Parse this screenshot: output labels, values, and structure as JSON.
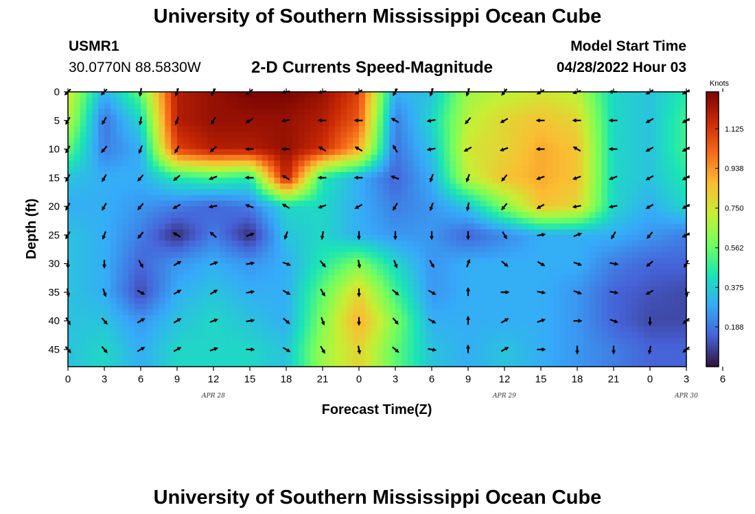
{
  "header": {
    "title": "University of Southern Mississippi Ocean Cube",
    "station_id": "USMR1",
    "coords": "30.0770N  88.5830W",
    "subtitle": "2-D Currents Speed-Magnitude",
    "model_label": "Model Start Time",
    "model_time": "04/28/2022 Hour 03"
  },
  "footer": {
    "title": "University of Southern Mississippi Ocean Cube"
  },
  "colors": {
    "ramp": [
      "#30123b",
      "#4662d7",
      "#36aaf9",
      "#1ae4b6",
      "#72fe5e",
      "#c7ef34",
      "#fabd33",
      "#f66b19",
      "#cb2a04",
      "#7a0403"
    ]
  },
  "chart_data": {
    "type": "heatmap",
    "title": "2-D Currents Speed-Magnitude",
    "xlabel": "Forecast Time(Z)",
    "ylabel": "Depth (ft)",
    "x_ticks": [
      "0",
      "3",
      "6",
      "9",
      "12",
      "15",
      "18",
      "21",
      "0",
      "3",
      "6",
      "9",
      "12",
      "15",
      "18",
      "21",
      "0",
      "3",
      "6"
    ],
    "x_hours_range": [
      0,
      51
    ],
    "y_ticks": [
      "0",
      "5",
      "10",
      "15",
      "20",
      "25",
      "30",
      "35",
      "40",
      "45"
    ],
    "y_range": [
      0,
      48
    ],
    "date_labels": [
      {
        "label": "APR 28",
        "hour": 12
      },
      {
        "label": "APR 29",
        "hour": 36
      },
      {
        "label": "APR 30",
        "hour": 51
      }
    ],
    "colorbar": {
      "label": "Knots",
      "ticks": [
        "0.188",
        "0.375",
        "0.562",
        "0.750",
        "0.938",
        "1.125"
      ],
      "tick_values": [
        0.188,
        0.375,
        0.562,
        0.75,
        0.938,
        1.125
      ],
      "range": [
        0,
        1.3
      ]
    },
    "grid_hours": [
      0,
      3,
      6,
      9,
      12,
      15,
      18,
      21,
      24,
      27,
      30,
      33,
      36,
      39,
      42,
      45,
      48,
      51
    ],
    "grid_depths": [
      0,
      5,
      10,
      15,
      20,
      25,
      30,
      35,
      40,
      45
    ],
    "speed": [
      [
        0.75,
        0.3,
        0.55,
        1.2,
        1.25,
        1.3,
        1.3,
        1.25,
        1.1,
        0.3,
        0.35,
        0.65,
        0.7,
        0.75,
        0.7,
        0.4,
        0.35,
        0.45
      ],
      [
        0.7,
        0.18,
        0.4,
        1.2,
        1.25,
        1.25,
        1.25,
        1.2,
        1.05,
        0.2,
        0.4,
        0.7,
        0.8,
        0.85,
        0.8,
        0.4,
        0.35,
        0.5
      ],
      [
        0.55,
        0.2,
        0.3,
        1.1,
        1.2,
        1.2,
        1.25,
        1.15,
        0.9,
        0.18,
        0.35,
        0.75,
        0.8,
        0.9,
        0.85,
        0.4,
        0.35,
        0.5
      ],
      [
        0.35,
        0.3,
        0.3,
        0.45,
        0.5,
        0.45,
        1.2,
        0.45,
        0.3,
        0.15,
        0.3,
        0.7,
        0.85,
        0.9,
        0.85,
        0.4,
        0.35,
        0.45
      ],
      [
        0.3,
        0.3,
        0.25,
        0.2,
        0.15,
        0.2,
        0.4,
        0.4,
        0.3,
        0.2,
        0.25,
        0.35,
        0.6,
        0.85,
        0.8,
        0.4,
        0.3,
        0.4
      ],
      [
        0.35,
        0.3,
        0.2,
        0.05,
        0.2,
        0.05,
        0.35,
        0.4,
        0.3,
        0.25,
        0.25,
        0.15,
        0.22,
        0.3,
        0.3,
        0.3,
        0.25,
        0.2
      ],
      [
        0.35,
        0.3,
        0.15,
        0.25,
        0.3,
        0.25,
        0.3,
        0.45,
        0.6,
        0.4,
        0.25,
        0.3,
        0.3,
        0.3,
        0.3,
        0.2,
        0.15,
        0.15
      ],
      [
        0.35,
        0.3,
        0.1,
        0.3,
        0.35,
        0.3,
        0.3,
        0.55,
        0.8,
        0.5,
        0.25,
        0.3,
        0.3,
        0.3,
        0.25,
        0.15,
        0.12,
        0.1
      ],
      [
        0.35,
        0.35,
        0.25,
        0.35,
        0.4,
        0.35,
        0.3,
        0.6,
        0.9,
        0.6,
        0.3,
        0.3,
        0.3,
        0.3,
        0.25,
        0.15,
        0.1,
        0.1
      ],
      [
        0.35,
        0.4,
        0.3,
        0.4,
        0.4,
        0.4,
        0.35,
        0.65,
        0.8,
        0.55,
        0.35,
        0.3,
        0.35,
        0.3,
        0.25,
        0.2,
        0.15,
        0.15
      ]
    ],
    "direction_deg": [
      [
        225,
        225,
        190,
        200,
        210,
        230,
        260,
        260,
        240,
        210,
        200,
        200,
        220,
        240,
        250,
        270,
        240,
        240
      ],
      [
        210,
        210,
        190,
        200,
        210,
        240,
        260,
        270,
        270,
        300,
        260,
        220,
        240,
        270,
        270,
        270,
        240,
        240
      ],
      [
        210,
        220,
        200,
        210,
        230,
        270,
        270,
        300,
        300,
        330,
        260,
        240,
        250,
        270,
        300,
        270,
        240,
        240
      ],
      [
        210,
        210,
        220,
        230,
        250,
        270,
        300,
        270,
        270,
        290,
        200,
        200,
        220,
        250,
        250,
        250,
        240,
        240
      ],
      [
        210,
        210,
        220,
        240,
        260,
        290,
        300,
        250,
        240,
        210,
        200,
        190,
        220,
        240,
        260,
        260,
        240,
        240
      ],
      [
        210,
        200,
        220,
        300,
        310,
        70,
        200,
        190,
        180,
        180,
        180,
        180,
        150,
        80,
        70,
        210,
        220,
        240
      ],
      [
        180,
        180,
        150,
        60,
        70,
        80,
        110,
        140,
        170,
        160,
        150,
        20,
        130,
        120,
        110,
        100,
        230,
        210
      ],
      [
        170,
        160,
        120,
        60,
        60,
        80,
        120,
        150,
        180,
        130,
        120,
        0,
        90,
        100,
        110,
        100,
        240,
        170
      ],
      [
        150,
        140,
        60,
        60,
        70,
        80,
        130,
        160,
        180,
        140,
        120,
        0,
        60,
        70,
        90,
        110,
        180,
        230
      ],
      [
        140,
        140,
        60,
        60,
        70,
        90,
        120,
        150,
        170,
        130,
        100,
        0,
        60,
        90,
        180,
        180,
        190,
        230
      ]
    ]
  }
}
